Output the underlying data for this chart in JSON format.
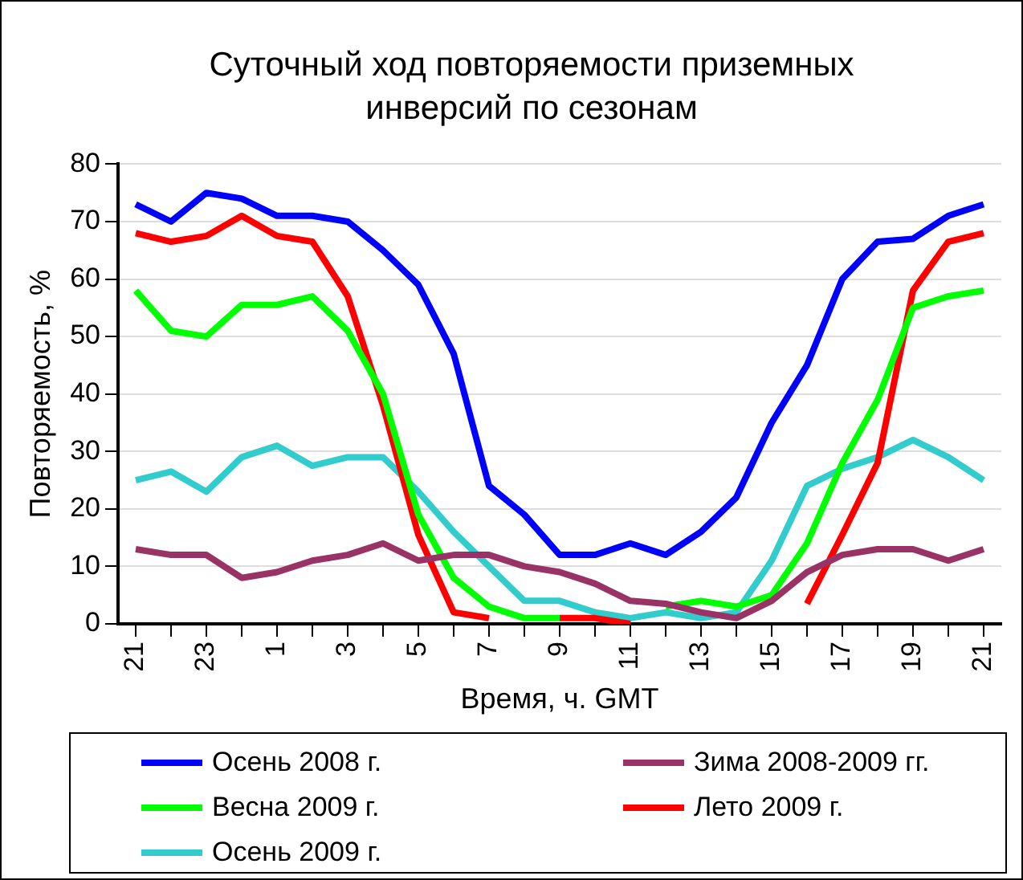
{
  "chart_data": {
    "type": "line",
    "title": "Суточный ход повторяемости приземных инверсий по сезонам",
    "xlabel": "Время, ч. GMT",
    "ylabel": "Повторяемость, %",
    "categories": [
      "21",
      null,
      "23",
      null,
      "1",
      null,
      "3",
      null,
      "5",
      null,
      "7",
      null,
      "9",
      null,
      "11",
      null,
      "13",
      null,
      "15",
      null,
      "17",
      null,
      "19",
      null,
      "21"
    ],
    "ylim": [
      0,
      80
    ],
    "yticks": [
      0,
      10,
      20,
      30,
      40,
      50,
      60,
      70,
      80
    ],
    "grid": "y",
    "legend": "bottom",
    "marker": "none",
    "line_style": "solid",
    "series": [
      {
        "name": "Осень 2008 г.",
        "color": "#0000ff",
        "values": [
          73,
          70,
          75,
          74,
          71,
          71,
          70,
          65,
          59,
          47,
          24,
          19,
          12,
          12,
          14,
          12,
          16,
          22,
          35,
          45,
          60,
          66.5,
          67,
          71,
          73
        ]
      },
      {
        "name": "Зима 2008-2009 гг.",
        "color": "#993366",
        "values": [
          13,
          12,
          12,
          8,
          9,
          11,
          12,
          14,
          11,
          12,
          12,
          10,
          9,
          7,
          4,
          3.5,
          2,
          1,
          4,
          9,
          12,
          13,
          13,
          11,
          13
        ]
      },
      {
        "name": "Весна 2009 г.",
        "color": "#00ff00",
        "values": [
          58,
          51,
          50,
          55.5,
          55.5,
          57,
          51,
          40,
          19,
          8,
          3,
          1,
          1,
          null,
          null,
          3,
          4,
          3,
          5,
          14,
          28,
          39,
          55,
          57,
          58
        ]
      },
      {
        "name": "Лето 2009 г.",
        "color": "#ff0000",
        "values": [
          68,
          66.5,
          67.5,
          71,
          67.5,
          66.5,
          57,
          38,
          15.5,
          2,
          1,
          null,
          1,
          1,
          0,
          null,
          null,
          null,
          null,
          3.5,
          15.5,
          28,
          58,
          66.5,
          68
        ]
      },
      {
        "name": "Осень 2009 г.",
        "color": "#33cccc",
        "values": [
          25,
          26.5,
          23,
          29,
          31,
          27.5,
          29,
          29,
          23,
          16,
          10,
          4,
          4,
          2,
          1,
          2,
          1,
          2,
          11,
          24,
          27,
          29,
          32,
          29,
          25
        ]
      }
    ]
  }
}
